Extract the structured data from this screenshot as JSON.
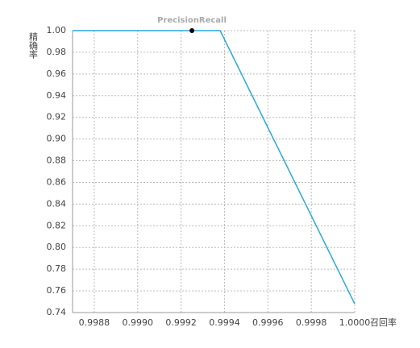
{
  "chart_data": {
    "type": "line",
    "title": "PrecisionRecall",
    "x_label": "召回率",
    "y_label": "精确率",
    "x": [
      0.9987,
      0.99938,
      1.0
    ],
    "series": [
      {
        "color": "#29a8e0",
        "values": [
          1.0,
          1.0,
          0.748
        ]
      },
      {
        "color": "#000000",
        "x": [
          0.99925
        ],
        "values": [
          1.0
        ],
        "markers_only": true
      }
    ],
    "xlim": [
      0.9987,
      1.0
    ],
    "ylim": [
      0.74,
      1.0
    ],
    "xticks": [
      0.9988,
      {
        "value": 0.999,
        "label": "0.9990"
      },
      0.9992,
      0.9994,
      0.9996,
      0.9998,
      {
        "value": 1.0,
        "label": "1.0000"
      }
    ],
    "yticks": [
      0.74,
      0.76,
      0.78,
      {
        "value": 0.8,
        "label": "0.80"
      },
      0.82,
      0.84,
      0.86,
      0.88,
      {
        "value": 0.9,
        "label": "0.90"
      },
      0.92,
      0.94,
      0.96,
      0.98,
      {
        "value": 1.0,
        "label": "1.00"
      }
    ],
    "grid": true
  }
}
